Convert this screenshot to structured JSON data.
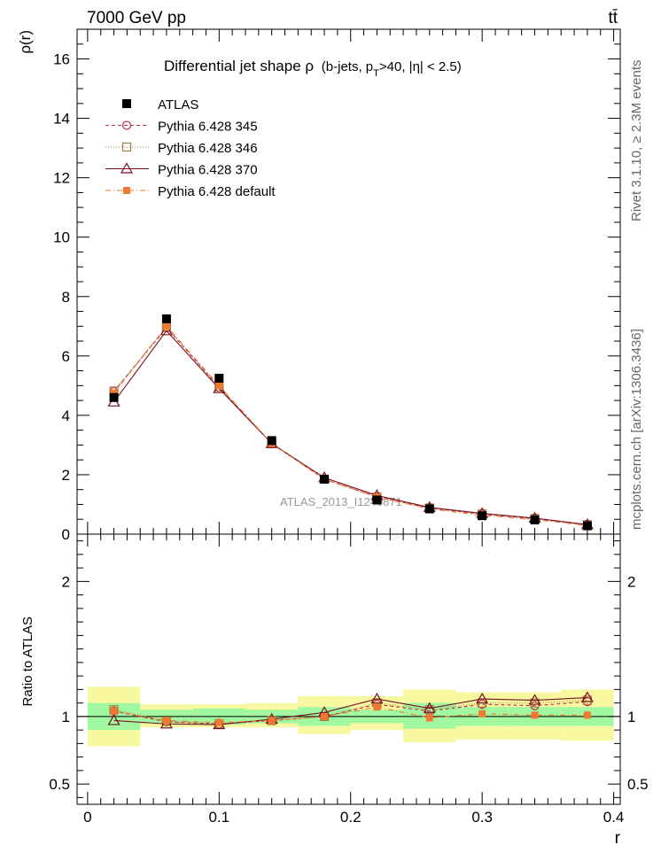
{
  "header": {
    "energy": "7000 GeV pp",
    "process": "tt̄",
    "title_main": "Differential jet shape  ρ",
    "title_detail": "(b-jets, p",
    "title_sub": "T",
    "title_end": ">40, |η| < 2.5)",
    "watermark": "ATLAS_2013_I1240871",
    "side_rivet": "Rivet 3.1.10, ≥ 2.3M events",
    "side_mcplots": "mcplots.cern.ch [arXiv:1306.3436]"
  },
  "axes": {
    "ylabel_top": "ρ(r)",
    "ylabel_bottom": "Ratio to ATLAS",
    "xlabel": "r"
  },
  "colors": {
    "atlas": "#000000",
    "p345": "#c0304a",
    "p346": "#a08040",
    "p370": "#7a1020",
    "pdef": "#f07830",
    "band_green": "#a0f8a0",
    "band_yellow": "#f8f8a0"
  },
  "chart_data": {
    "type": "scatter",
    "x": [
      0.02,
      0.06,
      0.1,
      0.14,
      0.18,
      0.22,
      0.26,
      0.3,
      0.34,
      0.38
    ],
    "bin_edges": [
      0.0,
      0.04,
      0.08,
      0.12,
      0.16,
      0.2,
      0.24,
      0.28,
      0.32,
      0.36,
      0.4
    ],
    "xlim": [
      -0.008,
      0.405
    ],
    "ylim_top": [
      0,
      17
    ],
    "ylim_ratio": [
      0.35,
      2.35
    ],
    "xticks": [
      "0",
      "0.1",
      "0.2",
      "0.3",
      "0.4"
    ],
    "yticks_top": [
      "0",
      "2",
      "4",
      "6",
      "8",
      "10",
      "12",
      "14",
      "16"
    ],
    "yticks_ratio": [
      "0.5",
      "1",
      "2"
    ],
    "legend_position": "top-left",
    "series": [
      {
        "name": "ATLAS",
        "marker": "square",
        "values": [
          4.6,
          7.25,
          5.25,
          3.15,
          1.85,
          1.15,
          0.85,
          0.62,
          0.48,
          0.28
        ],
        "ratio": [
          1.0,
          1.0,
          1.0,
          1.0,
          1.0,
          1.0,
          1.0,
          1.0,
          1.0,
          1.0
        ]
      },
      {
        "name": "Pythia 6.428 345",
        "marker": "circle",
        "values": [
          4.8,
          6.95,
          4.95,
          3.05,
          1.85,
          1.25,
          0.88,
          0.67,
          0.52,
          0.31
        ],
        "ratio": [
          1.04,
          0.96,
          0.945,
          0.97,
          1.0,
          1.09,
          1.04,
          1.09,
          1.08,
          1.11
        ]
      },
      {
        "name": "Pythia 6.428 346",
        "marker": "square-open",
        "values": [
          4.82,
          6.98,
          4.95,
          3.05,
          1.85,
          1.25,
          0.88,
          0.68,
          0.53,
          0.32
        ],
        "ratio": [
          1.05,
          0.965,
          0.945,
          0.97,
          1.0,
          1.1,
          1.05,
          1.1,
          1.1,
          1.12
        ]
      },
      {
        "name": "Pythia 6.428 370",
        "marker": "triangle",
        "values": [
          4.45,
          6.85,
          4.9,
          3.05,
          1.9,
          1.3,
          0.9,
          0.7,
          0.54,
          0.32
        ],
        "ratio": [
          0.97,
          0.945,
          0.94,
          0.98,
          1.03,
          1.13,
          1.06,
          1.13,
          1.12,
          1.14
        ]
      },
      {
        "name": "Pythia 6.428 default",
        "marker": "square-filled",
        "values": [
          4.75,
          7.0,
          5.0,
          3.05,
          1.85,
          1.25,
          0.85,
          0.63,
          0.49,
          0.29
        ],
        "ratio": [
          1.04,
          0.97,
          0.955,
          0.97,
          1.0,
          1.07,
          0.99,
          1.02,
          1.01,
          1.01
        ]
      }
    ],
    "ratio_band_inner": [
      [
        0.9,
        1.1
      ],
      [
        0.95,
        1.05
      ],
      [
        0.94,
        1.06
      ],
      [
        0.95,
        1.05
      ],
      [
        0.93,
        1.07
      ],
      [
        0.95,
        1.05
      ],
      [
        0.91,
        1.1
      ],
      [
        0.93,
        1.07
      ],
      [
        0.93,
        1.07
      ],
      [
        0.93,
        1.07
      ]
    ],
    "ratio_band_outer": [
      [
        0.78,
        1.22
      ],
      [
        0.92,
        1.09
      ],
      [
        0.92,
        1.09
      ],
      [
        0.92,
        1.1
      ],
      [
        0.87,
        1.15
      ],
      [
        0.9,
        1.15
      ],
      [
        0.81,
        1.2
      ],
      [
        0.83,
        1.18
      ],
      [
        0.83,
        1.18
      ],
      [
        0.82,
        1.2
      ]
    ]
  }
}
